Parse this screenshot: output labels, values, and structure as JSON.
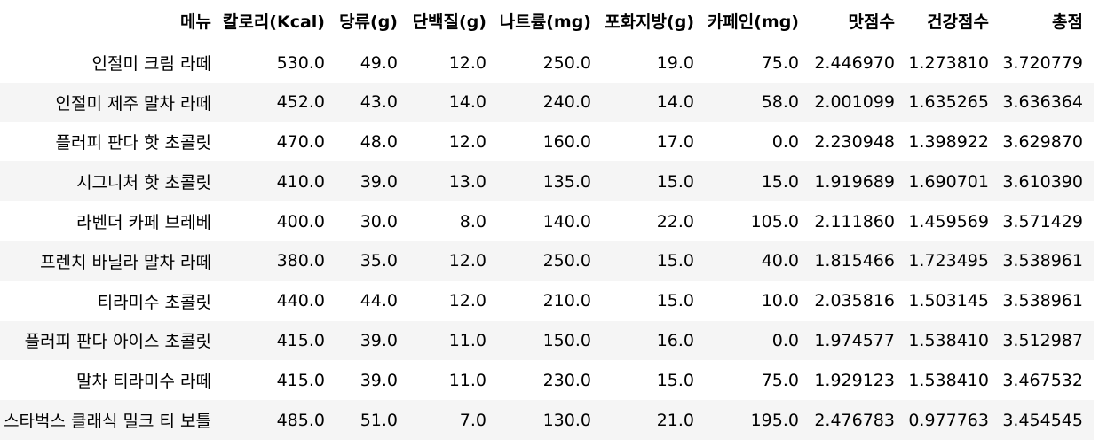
{
  "table": {
    "columns": [
      "메뉴",
      "칼로리(Kcal)",
      "당류(g)",
      "단백질(g)",
      "나트륨(mg)",
      "포화지방(g)",
      "카페인(mg)",
      "맛점수",
      "건강점수",
      "총점"
    ],
    "rows": [
      [
        "인절미 크림 라떼",
        "530.0",
        "49.0",
        "12.0",
        "250.0",
        "19.0",
        "75.0",
        "2.446970",
        "1.273810",
        "3.720779"
      ],
      [
        "인절미 제주 말차 라떼",
        "452.0",
        "43.0",
        "14.0",
        "240.0",
        "14.0",
        "58.0",
        "2.001099",
        "1.635265",
        "3.636364"
      ],
      [
        "플러피 판다 핫 초콜릿",
        "470.0",
        "48.0",
        "12.0",
        "160.0",
        "17.0",
        "0.0",
        "2.230948",
        "1.398922",
        "3.629870"
      ],
      [
        "시그니처 핫 초콜릿",
        "410.0",
        "39.0",
        "13.0",
        "135.0",
        "15.0",
        "15.0",
        "1.919689",
        "1.690701",
        "3.610390"
      ],
      [
        "라벤더 카페 브레베",
        "400.0",
        "30.0",
        "8.0",
        "140.0",
        "22.0",
        "105.0",
        "2.111860",
        "1.459569",
        "3.571429"
      ],
      [
        "프렌치 바닐라 말차 라떼",
        "380.0",
        "35.0",
        "12.0",
        "250.0",
        "15.0",
        "40.0",
        "1.815466",
        "1.723495",
        "3.538961"
      ],
      [
        "티라미수 초콜릿",
        "440.0",
        "44.0",
        "12.0",
        "210.0",
        "15.0",
        "10.0",
        "2.035816",
        "1.503145",
        "3.538961"
      ],
      [
        "플러피 판다 아이스 초콜릿",
        "415.0",
        "39.0",
        "11.0",
        "150.0",
        "16.0",
        "0.0",
        "1.974577",
        "1.538410",
        "3.512987"
      ],
      [
        "말차 티라미수 라떼",
        "415.0",
        "39.0",
        "11.0",
        "230.0",
        "15.0",
        "75.0",
        "1.929123",
        "1.538410",
        "3.467532"
      ],
      [
        "스타벅스 클래식 밀크 티 보틀",
        "485.0",
        "51.0",
        "7.0",
        "130.0",
        "21.0",
        "195.0",
        "2.476783",
        "0.977763",
        "3.454545"
      ]
    ]
  }
}
